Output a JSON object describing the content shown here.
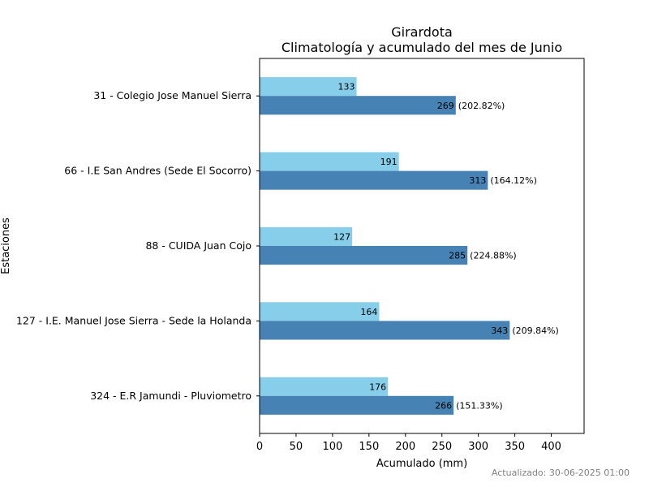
{
  "chart_data": {
    "type": "bar",
    "orientation": "horizontal",
    "title": "Girardota",
    "subtitle": "Climatología y acumulado del mes de Junio",
    "xlabel": "Acumulado (mm)",
    "ylabel": "Estaciones",
    "xlim": [
      0,
      445
    ],
    "xticks": [
      "0",
      "50",
      "100",
      "150",
      "200",
      "250",
      "300",
      "350",
      "400"
    ],
    "categories": [
      "31 - Colegio Jose Manuel Sierra",
      "66 - I.E San Andres (Sede El Socorro)",
      "88 - CUIDA Juan Cojo",
      "127 - I.E. Manuel Jose Sierra - Sede la Holanda",
      "324 - E.R Jamundi - Pluviometro"
    ],
    "series": [
      {
        "values": [
          133,
          191,
          127,
          164,
          176
        ],
        "labels": [
          "133",
          "191",
          "127",
          "164",
          "176"
        ],
        "color": "#87ceeb"
      },
      {
        "values": [
          269,
          313,
          285,
          343,
          266
        ],
        "labels": [
          "269",
          "313",
          "285",
          "343",
          "266"
        ],
        "color": "#4682b4"
      }
    ],
    "percent_labels": [
      "(202.82%)",
      "(164.12%)",
      "(224.88%)",
      "(209.84%)",
      "(151.33%)"
    ],
    "grid": false,
    "legend": "none"
  },
  "footer": {
    "updated": "Actualizado: 30-06-2025 01:00"
  }
}
